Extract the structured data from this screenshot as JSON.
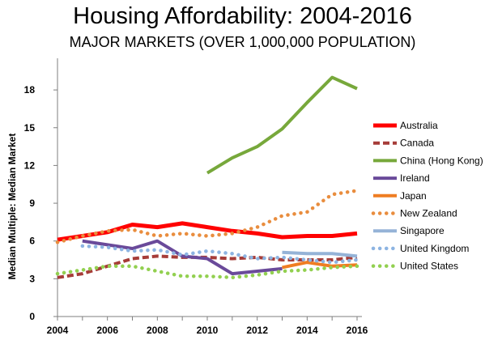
{
  "chart_data": {
    "type": "line",
    "title": "Housing Affordability: 2004-2016",
    "subtitle": "MAJOR MARKETS (OVER 1,000,000 POPULATION)",
    "xlabel": "",
    "ylabel": "Median Multiple: Median Market",
    "x": [
      2004,
      2005,
      2006,
      2007,
      2008,
      2009,
      2010,
      2011,
      2012,
      2013,
      2014,
      2015,
      2016
    ],
    "xlim": [
      2004,
      2016
    ],
    "ylim": [
      0,
      20
    ],
    "x_ticks": [
      "2004",
      "2006",
      "2008",
      "2010",
      "2012",
      "2014",
      "2016"
    ],
    "y_ticks": [
      "0",
      "3",
      "6",
      "9",
      "12",
      "15",
      "18"
    ],
    "grid": false,
    "legend_position": "right",
    "series": [
      {
        "name": "Australia",
        "color": "#ff0000",
        "style": "solid-thick",
        "values": [
          6.1,
          6.4,
          6.7,
          7.3,
          7.1,
          7.4,
          7.1,
          6.8,
          6.6,
          6.3,
          6.4,
          6.4,
          6.6
        ]
      },
      {
        "name": "Canada",
        "color": "#a63c38",
        "style": "dashed",
        "values": [
          3.1,
          3.4,
          4.0,
          4.6,
          4.8,
          4.7,
          4.7,
          4.6,
          4.7,
          4.5,
          4.5,
          4.5,
          4.7
        ]
      },
      {
        "name": "China (Hong Kong)",
        "color": "#77a83b",
        "style": "solid",
        "values": [
          null,
          null,
          null,
          null,
          null,
          null,
          11.4,
          12.6,
          13.5,
          14.9,
          17.0,
          19.0,
          18.1
        ]
      },
      {
        "name": "Ireland",
        "color": "#6a4a9a",
        "style": "solid",
        "values": [
          null,
          6.0,
          5.7,
          5.4,
          6.0,
          4.8,
          4.6,
          3.4,
          3.6,
          3.8,
          null,
          null,
          null
        ]
      },
      {
        "name": "Japan",
        "color": "#ef7d22",
        "style": "solid",
        "values": [
          null,
          null,
          null,
          null,
          null,
          null,
          null,
          null,
          null,
          3.9,
          4.3,
          4.0,
          4.1
        ]
      },
      {
        "name": "New Zealand",
        "color": "#e98d3e",
        "style": "dotted",
        "values": [
          5.9,
          6.4,
          6.8,
          6.9,
          6.4,
          6.6,
          6.4,
          6.6,
          7.1,
          8.0,
          8.3,
          9.7,
          10.0
        ]
      },
      {
        "name": "Singapore",
        "color": "#95b3d7",
        "style": "solid",
        "values": [
          null,
          null,
          null,
          null,
          null,
          null,
          null,
          null,
          null,
          5.1,
          5.0,
          5.0,
          4.8
        ]
      },
      {
        "name": "United Kingdom",
        "color": "#8db4e2",
        "style": "dotted",
        "values": [
          null,
          5.6,
          5.5,
          5.2,
          5.3,
          4.9,
          5.2,
          5.0,
          4.6,
          4.7,
          4.5,
          4.3,
          4.5
        ]
      },
      {
        "name": "United States",
        "color": "#92d050",
        "style": "dotted",
        "values": [
          3.4,
          3.7,
          4.0,
          4.0,
          3.6,
          3.2,
          3.2,
          3.1,
          3.3,
          3.6,
          3.7,
          3.9,
          4.0
        ]
      }
    ]
  }
}
